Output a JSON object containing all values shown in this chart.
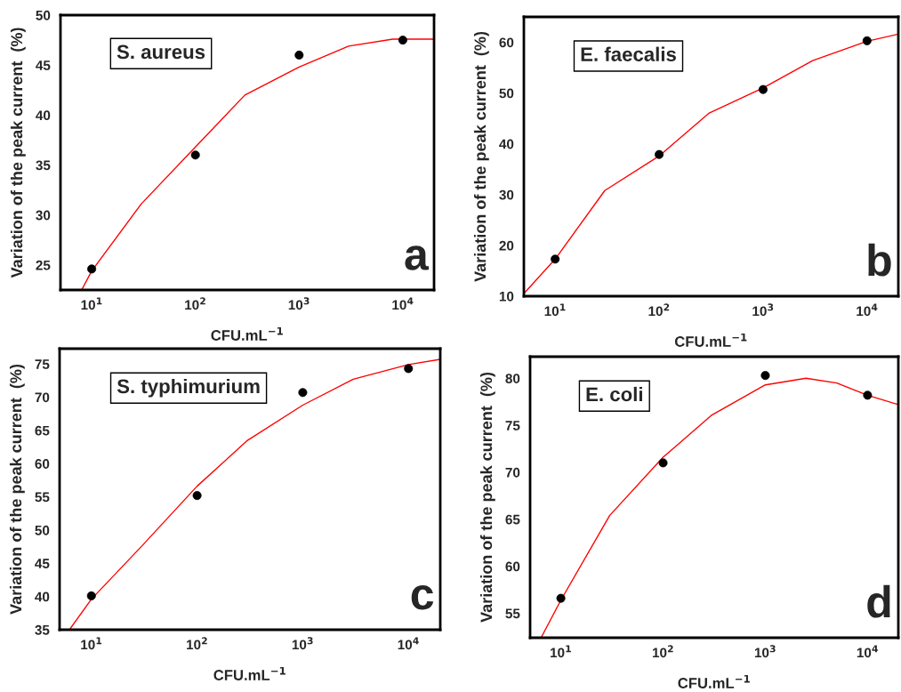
{
  "chart_data": [
    {
      "type": "scatter",
      "xlabel": "CFU.mL$^{−1}$",
      "ylabel": "Variation of the peak current  (%)",
      "log": "x",
      "xlim": [
        5,
        20000
      ],
      "ylim": [
        22.5,
        50
      ],
      "xticks": [
        {
          "value": 10,
          "label": "10$^{1}$"
        },
        {
          "value": 100,
          "label": "10$^{2}$"
        },
        {
          "value": 1000,
          "label": "10$^{3}$"
        },
        {
          "value": 10000,
          "label": "10$^{4}$"
        }
      ],
      "yticks": [
        25,
        30,
        35,
        40,
        45,
        50
      ],
      "grid": false,
      "marker": "circle",
      "annotations": [
        "S. aureus",
        "a"
      ],
      "series": [
        {
          "color": "#000000",
          "x": [
            10,
            100,
            1000,
            10000
          ],
          "values": [
            24.6,
            36.0,
            46.0,
            47.5
          ]
        },
        {
          "type": "line",
          "color": "#ff0000",
          "marker": "none",
          "line_style": "solid",
          "x": [
            8,
            10,
            30,
            100,
            300,
            1000,
            3000,
            8000,
            20000
          ],
          "values": [
            22.5,
            24.4,
            31.1,
            36.8,
            42.0,
            44.8,
            46.9,
            47.6,
            47.6
          ]
        }
      ]
    },
    {
      "type": "scatter",
      "xlabel": "CFU.mL$^{−1}$",
      "ylabel": "Variation of the peak current  (%)",
      "log": "x",
      "xlim": [
        5,
        20000
      ],
      "ylim": [
        10,
        65
      ],
      "xticks": [
        {
          "value": 10,
          "label": "10$^{1}$"
        },
        {
          "value": 100,
          "label": "10$^{2}$"
        },
        {
          "value": 1000,
          "label": "10$^{3}$"
        },
        {
          "value": 10000,
          "label": "10$^{4}$"
        }
      ],
      "yticks": [
        10,
        20,
        30,
        40,
        50,
        60
      ],
      "grid": false,
      "marker": "circle",
      "annotations": [
        "E. faecalis",
        "b"
      ],
      "series": [
        {
          "color": "#000000",
          "x": [
            10,
            100,
            1000,
            10000
          ],
          "values": [
            17.3,
            37.9,
            50.7,
            60.3
          ]
        },
        {
          "type": "line",
          "color": "#ff0000",
          "marker": "none",
          "line_style": "solid",
          "x": [
            5,
            10,
            30,
            100,
            300,
            1000,
            3000,
            10000,
            20000
          ],
          "values": [
            10.5,
            17.3,
            30.8,
            37.6,
            46.0,
            51.0,
            56.4,
            60.2,
            61.6
          ]
        }
      ]
    },
    {
      "type": "scatter",
      "xlabel": "CFU.mL$^{−1}$",
      "ylabel": "Variation of the peak current  (%)",
      "log": "x",
      "xlim": [
        5,
        20000
      ],
      "ylim": [
        35,
        77.3
      ],
      "xticks": [
        {
          "value": 10,
          "label": "10$^{1}$"
        },
        {
          "value": 100,
          "label": "10$^{2}$"
        },
        {
          "value": 1000,
          "label": "10$^{3}$"
        },
        {
          "value": 10000,
          "label": "10$^{4}$"
        }
      ],
      "yticks": [
        35,
        40,
        45,
        50,
        55,
        60,
        65,
        70,
        75
      ],
      "grid": false,
      "marker": "circle",
      "annotations": [
        "S. typhimurium",
        "c"
      ],
      "series": [
        {
          "color": "#000000",
          "x": [
            10,
            100,
            1000,
            10000
          ],
          "values": [
            40.1,
            55.2,
            70.7,
            74.3
          ]
        },
        {
          "type": "line",
          "color": "#ff0000",
          "marker": "none",
          "line_style": "solid",
          "x": [
            6.2,
            10,
            30,
            100,
            300,
            1000,
            3000,
            10000,
            20000
          ],
          "values": [
            35,
            39.6,
            47.6,
            56.6,
            63.5,
            68.8,
            72.7,
            74.9,
            75.7
          ]
        }
      ]
    },
    {
      "type": "scatter",
      "xlabel": "CFU.mL$^{−1}$",
      "ylabel": "Variation of the peak current  (%)",
      "log": "x",
      "xlim": [
        5,
        20000
      ],
      "ylim": [
        52.4,
        82.3
      ],
      "xticks": [
        {
          "value": 10,
          "label": "10$^{1}$"
        },
        {
          "value": 100,
          "label": "10$^{2}$"
        },
        {
          "value": 1000,
          "label": "10$^{3}$"
        },
        {
          "value": 10000,
          "label": "10$^{4}$"
        }
      ],
      "yticks": [
        55,
        60,
        65,
        70,
        75,
        80
      ],
      "grid": false,
      "marker": "circle",
      "annotations": [
        "E. coli",
        "d"
      ],
      "series": [
        {
          "color": "#000000",
          "x": [
            10,
            100,
            1000,
            10000
          ],
          "values": [
            56.6,
            71.0,
            80.3,
            78.2
          ]
        },
        {
          "type": "line",
          "color": "#ff0000",
          "marker": "none",
          "line_style": "solid",
          "x": [
            6.4,
            10,
            30,
            100,
            300,
            1000,
            2500,
            5000,
            10000,
            20000
          ],
          "values": [
            52.4,
            56.4,
            65.4,
            71.6,
            76.1,
            79.3,
            80.0,
            79.5,
            78.2,
            77.2
          ]
        }
      ]
    }
  ]
}
